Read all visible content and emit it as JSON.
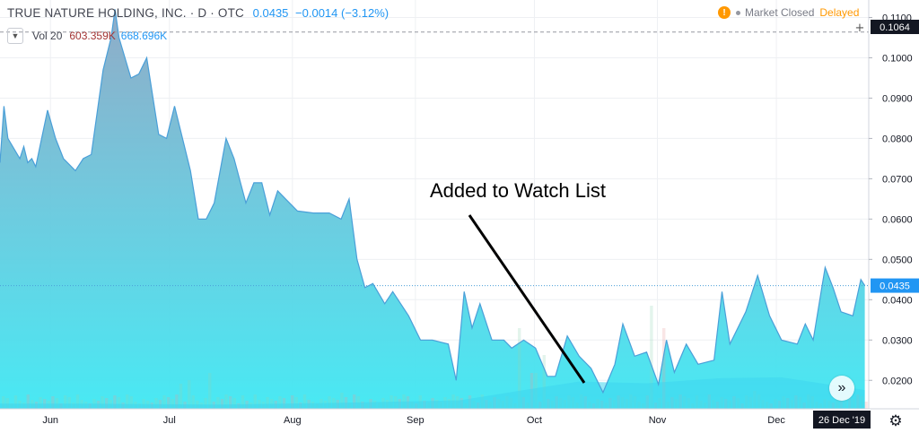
{
  "header": {
    "title": "TRUE NATURE HOLDING, INC. · D · OTC",
    "price": "0.0435",
    "change": "−0.0014 (−3.12%)"
  },
  "volume": {
    "label": "Vol 20",
    "value1": "603.359K",
    "value2": "668.696K"
  },
  "market": {
    "status": "Market Closed",
    "delay": "Delayed"
  },
  "crosshair_price": "0.1064",
  "last_price_label": "0.0435",
  "date_badge": "26 Dec '19",
  "annotation": "Added to Watch List",
  "icons": {
    "dropdown": "chevron-down-icon",
    "warning": "warning-icon",
    "scroll": "double-chevron-right-icon",
    "settings": "gear-icon"
  },
  "colors": {
    "line": "#4a9fd8",
    "fill_top": "#8fb0c9",
    "fill_bottom": "#3fe3f0",
    "volume_up": "#8fd3b5",
    "volume_down": "#e89a9a",
    "accent": "#2196f3",
    "warning": "#ff9800"
  },
  "chart_data": {
    "type": "area",
    "title": "",
    "xlabel": "",
    "ylabel": "",
    "x_ticks": [
      "Jun",
      "Jul",
      "Aug",
      "Sep",
      "Oct",
      "Nov",
      "Dec"
    ],
    "y_ticks": [
      "0.1100",
      "0.1000",
      "0.0900",
      "0.0800",
      "0.0700",
      "0.0600",
      "0.0500",
      "0.0400",
      "0.0300",
      "0.0200"
    ],
    "ylim": [
      0.0165,
      0.111
    ],
    "xlim": [
      "2019-05-22",
      "2019-12-27"
    ],
    "series": [
      {
        "values": [
          [
            "2019-05-22",
            0.074
          ],
          [
            "2019-05-23",
            0.088
          ],
          [
            "2019-05-24",
            0.08
          ],
          [
            "2019-05-27",
            0.075
          ],
          [
            "2019-05-28",
            0.078
          ],
          [
            "2019-05-29",
            0.074
          ],
          [
            "2019-05-30",
            0.075
          ],
          [
            "2019-05-31",
            0.073
          ],
          [
            "2019-06-03",
            0.087
          ],
          [
            "2019-06-05",
            0.08
          ],
          [
            "2019-06-07",
            0.075
          ],
          [
            "2019-06-10",
            0.072
          ],
          [
            "2019-06-12",
            0.075
          ],
          [
            "2019-06-14",
            0.076
          ],
          [
            "2019-06-17",
            0.097
          ],
          [
            "2019-06-19",
            0.105
          ],
          [
            "2019-06-20",
            0.112
          ],
          [
            "2019-06-21",
            0.105
          ],
          [
            "2019-06-24",
            0.095
          ],
          [
            "2019-06-26",
            0.096
          ],
          [
            "2019-06-28",
            0.1
          ],
          [
            "2019-07-01",
            0.081
          ],
          [
            "2019-07-03",
            0.08
          ],
          [
            "2019-07-05",
            0.088
          ],
          [
            "2019-07-09",
            0.072
          ],
          [
            "2019-07-11",
            0.06
          ],
          [
            "2019-07-13",
            0.06
          ],
          [
            "2019-07-15",
            0.064
          ],
          [
            "2019-07-18",
            0.08
          ],
          [
            "2019-07-20",
            0.075
          ],
          [
            "2019-07-23",
            0.064
          ],
          [
            "2019-07-25",
            0.069
          ],
          [
            "2019-07-27",
            0.069
          ],
          [
            "2019-07-29",
            0.061
          ],
          [
            "2019-07-31",
            0.067
          ],
          [
            "2019-08-02",
            0.065
          ],
          [
            "2019-08-05",
            0.062
          ],
          [
            "2019-08-09",
            0.0615
          ],
          [
            "2019-08-13",
            0.0615
          ],
          [
            "2019-08-16",
            0.06
          ],
          [
            "2019-08-18",
            0.065
          ],
          [
            "2019-08-20",
            0.05
          ],
          [
            "2019-08-22",
            0.043
          ],
          [
            "2019-08-24",
            0.044
          ],
          [
            "2019-08-27",
            0.039
          ],
          [
            "2019-08-29",
            0.042
          ],
          [
            "2019-09-02",
            0.036
          ],
          [
            "2019-09-05",
            0.03
          ],
          [
            "2019-09-08",
            0.03
          ],
          [
            "2019-09-12",
            0.029
          ],
          [
            "2019-09-14",
            0.02
          ],
          [
            "2019-09-16",
            0.042
          ],
          [
            "2019-09-18",
            0.033
          ],
          [
            "2019-09-20",
            0.039
          ],
          [
            "2019-09-23",
            0.03
          ],
          [
            "2019-09-26",
            0.03
          ],
          [
            "2019-09-28",
            0.028
          ],
          [
            "2019-10-01",
            0.03
          ],
          [
            "2019-10-04",
            0.028
          ],
          [
            "2019-10-07",
            0.021
          ],
          [
            "2019-10-09",
            0.021
          ],
          [
            "2019-10-12",
            0.031
          ],
          [
            "2019-10-15",
            0.026
          ],
          [
            "2019-10-18",
            0.023
          ],
          [
            "2019-10-21",
            0.017
          ],
          [
            "2019-10-24",
            0.024
          ],
          [
            "2019-10-26",
            0.034
          ],
          [
            "2019-10-29",
            0.026
          ],
          [
            "2019-11-01",
            0.027
          ],
          [
            "2019-11-04",
            0.019
          ],
          [
            "2019-11-06",
            0.03
          ],
          [
            "2019-11-08",
            0.022
          ],
          [
            "2019-11-11",
            0.029
          ],
          [
            "2019-11-14",
            0.024
          ],
          [
            "2019-11-18",
            0.025
          ],
          [
            "2019-11-20",
            0.042
          ],
          [
            "2019-11-22",
            0.029
          ],
          [
            "2019-11-26",
            0.037
          ],
          [
            "2019-11-29",
            0.046
          ],
          [
            "2019-12-02",
            0.036
          ],
          [
            "2019-12-05",
            0.03
          ],
          [
            "2019-12-09",
            0.029
          ],
          [
            "2019-12-11",
            0.034
          ],
          [
            "2019-12-13",
            0.03
          ],
          [
            "2019-12-16",
            0.048
          ],
          [
            "2019-12-18",
            0.043
          ],
          [
            "2019-12-20",
            0.037
          ],
          [
            "2019-12-23",
            0.036
          ],
          [
            "2019-12-25",
            0.045
          ],
          [
            "2019-12-26",
            0.0435
          ]
        ]
      }
    ],
    "volume_ma": [
      [
        "2019-05-22",
        0.06
      ],
      [
        "2019-06-15",
        0.06
      ],
      [
        "2019-07-15",
        0.05
      ],
      [
        "2019-08-15",
        0.07
      ],
      [
        "2019-09-15",
        0.1
      ],
      [
        "2019-10-01",
        0.22
      ],
      [
        "2019-10-15",
        0.32
      ],
      [
        "2019-11-01",
        0.3
      ],
      [
        "2019-11-20",
        0.36
      ],
      [
        "2019-12-05",
        0.37
      ],
      [
        "2019-12-26",
        0.22
      ]
    ]
  }
}
